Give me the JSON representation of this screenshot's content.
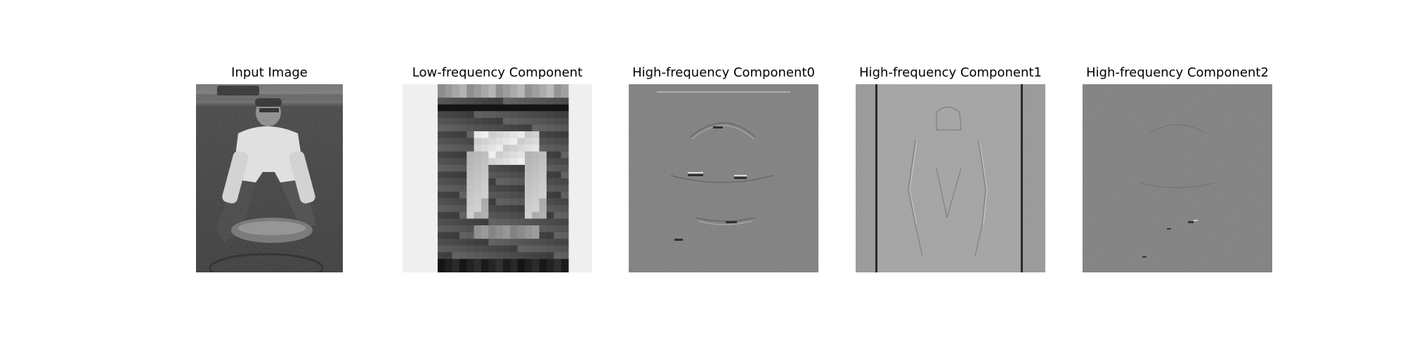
{
  "panels": [
    {
      "title": "Input Image"
    },
    {
      "title": "Low-frequency Component"
    },
    {
      "title": "High-frequency Component0"
    },
    {
      "title": "High-frequency Component1"
    },
    {
      "title": "High-frequency Component2"
    }
  ]
}
